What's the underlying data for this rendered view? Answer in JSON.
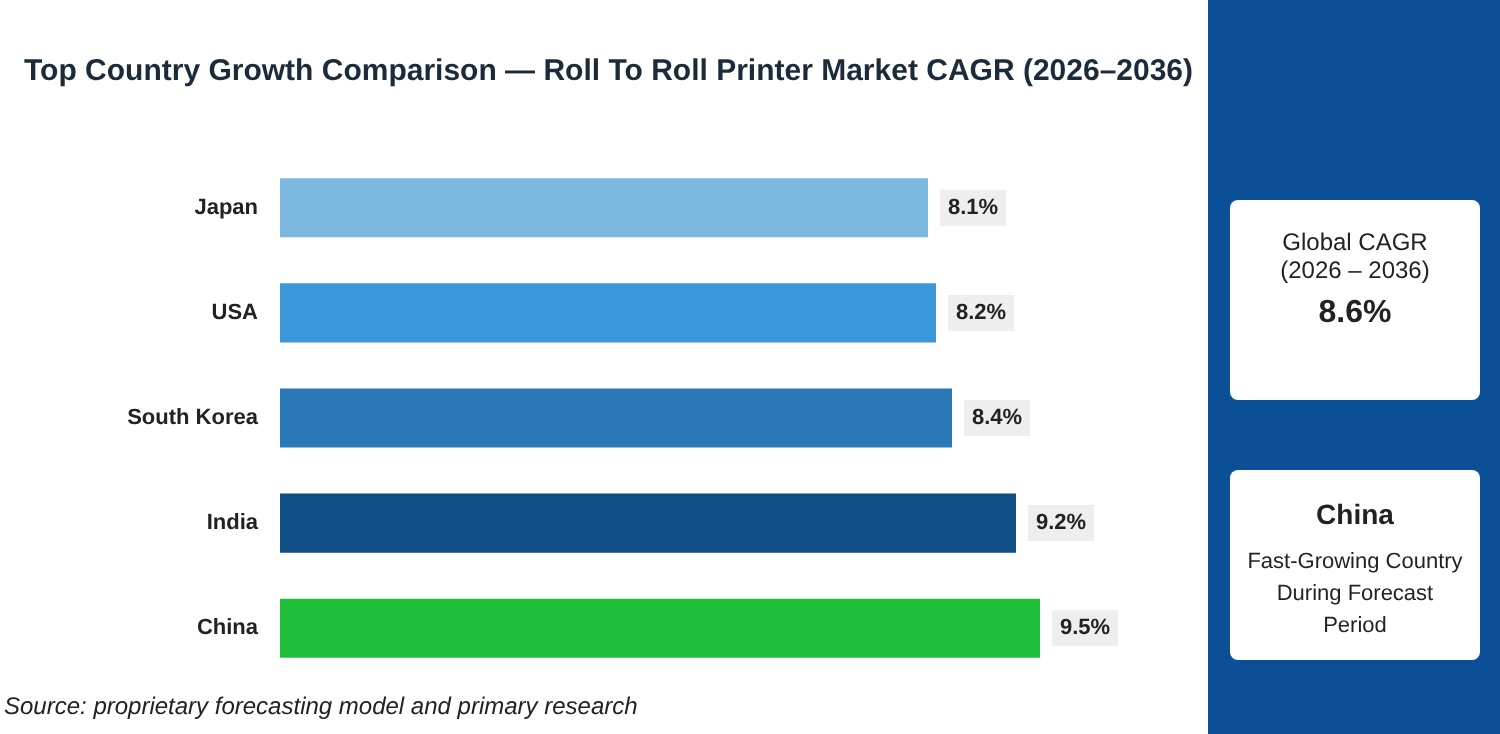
{
  "chart_data": [
    {
      "type": "bar",
      "orientation": "horizontal",
      "title": "Top Country Growth Comparison — Roll To Roll Printer Market CAGR (2026–2036)",
      "categories": [
        "Japan",
        "USA",
        "South Korea",
        "India",
        "China"
      ],
      "values": [
        8.1,
        8.2,
        8.4,
        9.2,
        9.5
      ],
      "colors": [
        "#7ab8e0",
        "#3a97d8",
        "#2b78b8",
        "#0f4f85",
        "#1fbf3a"
      ],
      "value_labels": [
        "8.1%",
        "8.2%",
        "8.4%",
        "9.2%",
        "9.5%"
      ],
      "tick_labels": "y",
      "legend": false,
      "annotations": [
        "Source: proprietary forecasting model and primary research"
      ]
    },
    {
      "type": "other",
      "title": "Global CAGR",
      "subtitle": "(2026 – 2036)",
      "annotations": [
        "8.6%"
      ]
    },
    {
      "type": "other",
      "title": "China",
      "annotations": [
        "Fast-Growing Country During Forecast Period"
      ]
    }
  ]
}
